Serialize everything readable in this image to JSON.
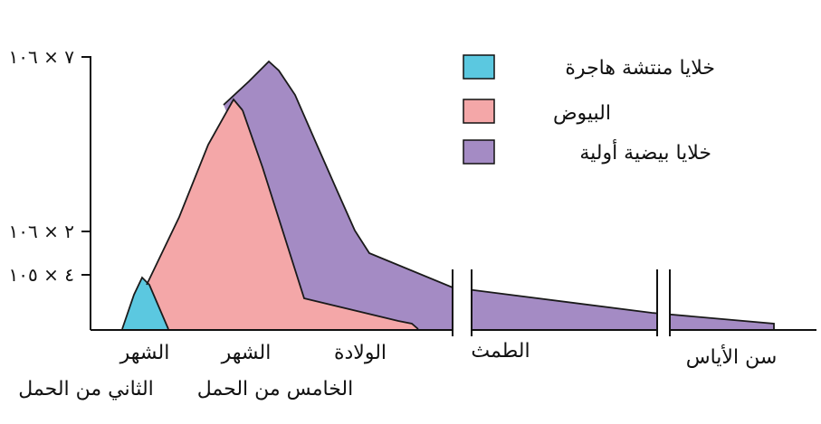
{
  "chart_data": {
    "type": "area",
    "title": "",
    "xlabel": "",
    "ylabel": "",
    "y_tick_labels": [
      "٧ × ١٠٦",
      "٢ × ١٠٦",
      "٤ × ١٠٥"
    ],
    "y_tick_values": [
      7000000,
      2000000,
      400000
    ],
    "x_tick_labels": [
      [
        "الشهر",
        "الثاني من الحمل"
      ],
      [
        "الشهر",
        "الخامس من الحمل"
      ],
      [
        "الولادة"
      ],
      [
        "الطمث"
      ],
      [
        "سن الأياس"
      ]
    ],
    "x_axis_breaks": 2,
    "legend_position": "top-right",
    "series": [
      {
        "name": "خلايا منتشة هاجرة",
        "color": "#5BC8E0",
        "points": [
          [
            0,
            0
          ],
          [
            0.25,
            400000
          ],
          [
            0.6,
            0
          ]
        ]
      },
      {
        "name": "البيوض",
        "color": "#F4A7A8",
        "points": [
          [
            0.35,
            0
          ],
          [
            1.9,
            7600000
          ],
          [
            3.1,
            1100000
          ],
          [
            4.9,
            300000
          ],
          [
            5.3,
            0
          ]
        ]
      },
      {
        "name": "خلايا بيضية أولية",
        "color": "#A48BC4",
        "points": [
          [
            2.25,
            8900000
          ],
          [
            4.05,
            2500000
          ],
          [
            5.1,
            1700000
          ],
          [
            9.2,
            400000
          ],
          [
            9.8,
            200000
          ]
        ]
      }
    ],
    "grid": false
  },
  "colors": {
    "axis": "#111111",
    "outline": "#1a1a1a"
  }
}
